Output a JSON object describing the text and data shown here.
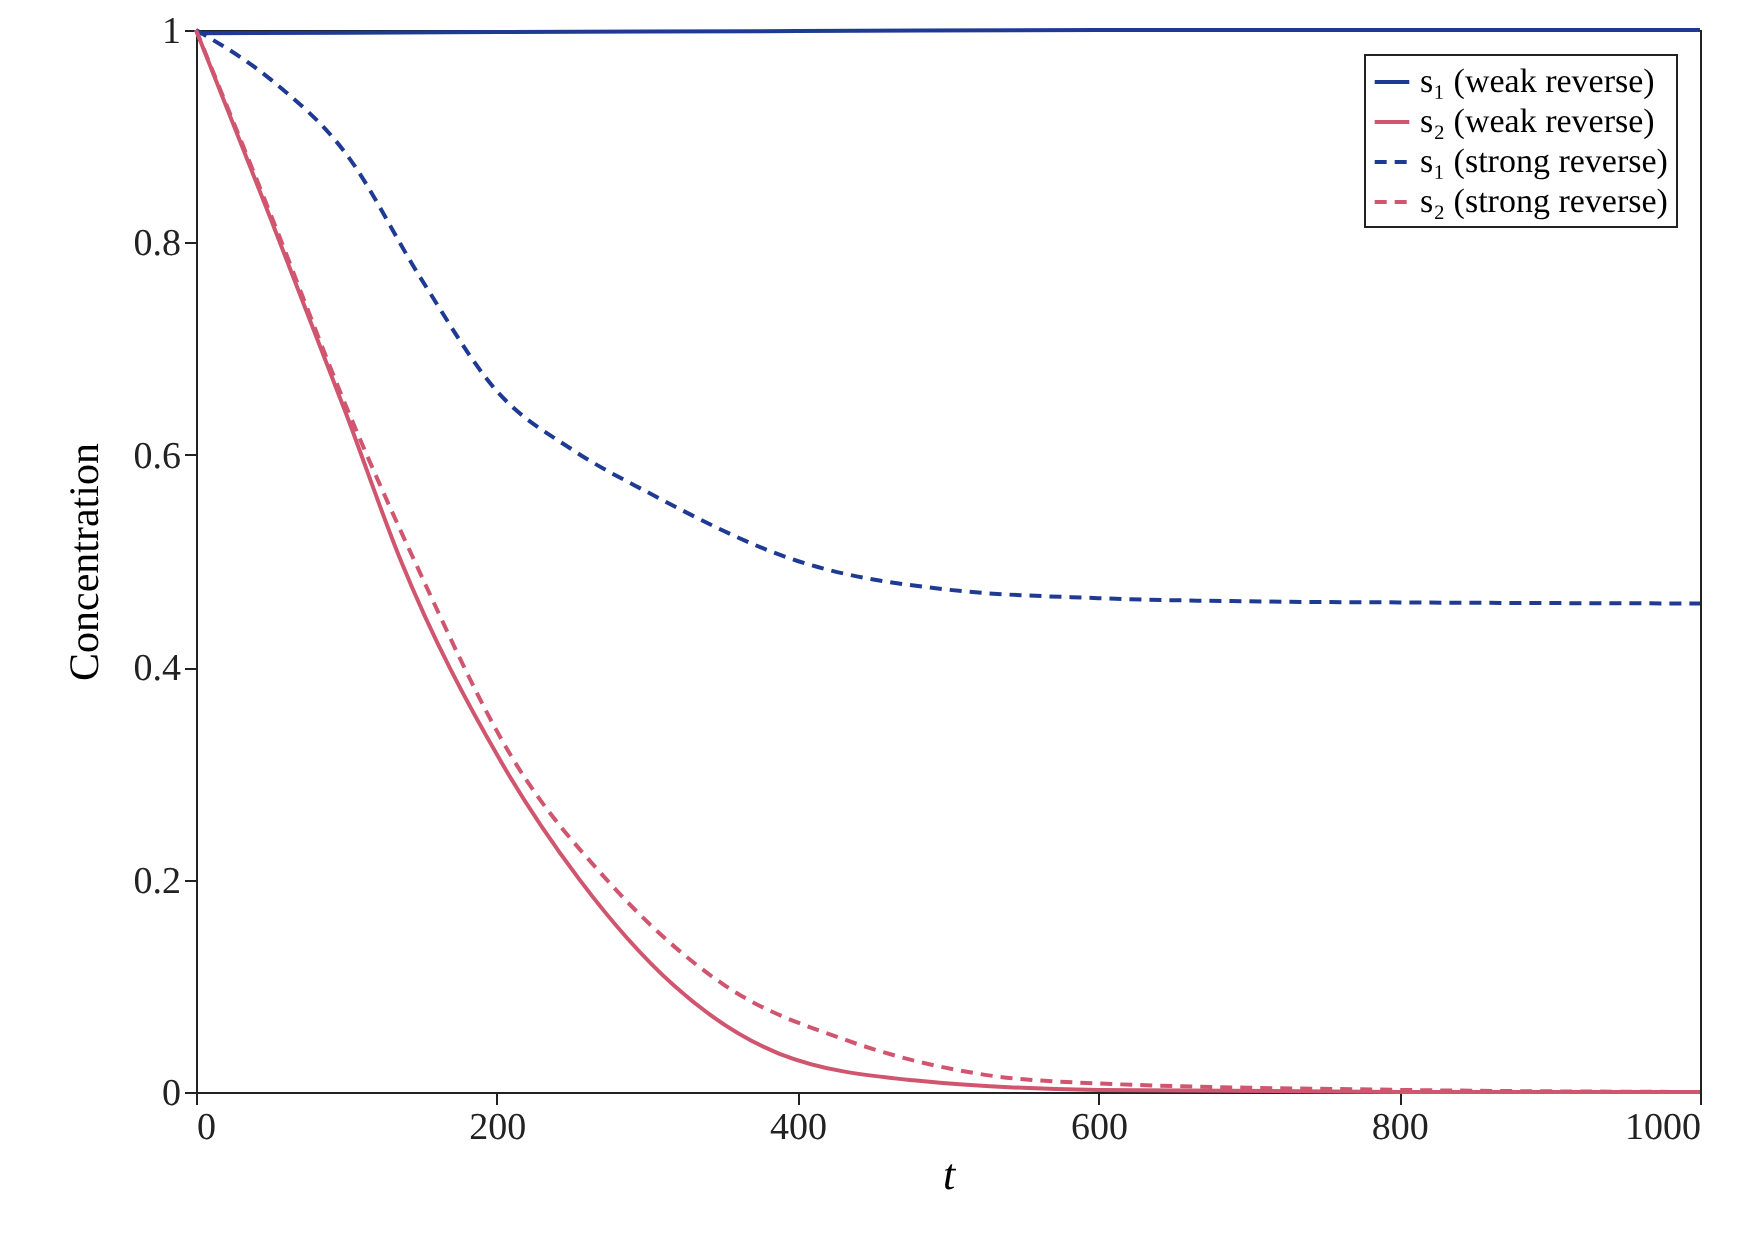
{
  "chart_data": {
    "type": "line",
    "xlabel": "t",
    "ylabel": "Concentration",
    "xlim": [
      0,
      1000
    ],
    "ylim": [
      0,
      1
    ],
    "xticks": [
      0,
      200,
      400,
      600,
      800,
      1000
    ],
    "yticks": [
      0,
      0.2,
      0.4,
      0.6,
      0.8,
      1
    ],
    "grid": false,
    "legend": "top right",
    "marker": "none",
    "series": [
      {
        "name": "s₁ (weak reverse)",
        "color": "#1f3a93",
        "line_style": "solid",
        "x": [
          0,
          200,
          400,
          600,
          1000
        ],
        "values": [
          0.997,
          0.998,
          0.999,
          1,
          1
        ]
      },
      {
        "name": "s₂ (weak reverse)",
        "color": "#d0566f",
        "line_style": "solid",
        "x": [
          0,
          50,
          100,
          136,
          202,
          255,
          318,
          388,
          477,
          600,
          800,
          1000
        ],
        "values": [
          1,
          0.821,
          0.638,
          0.501,
          0.313,
          0.2,
          0.1,
          0.036,
          0.011,
          0.002,
          0,
          0
        ]
      },
      {
        "name": "s₁ (strong reverse)",
        "color": "#1f3a93",
        "line_style": "dashed",
        "x": [
          0,
          50,
          100,
          150,
          200,
          250,
          300,
          400,
          500,
          600,
          700,
          800,
          1000
        ],
        "values": [
          1,
          0.953,
          0.883,
          0.765,
          0.66,
          0.605,
          0.565,
          0.5,
          0.473,
          0.465,
          0.462,
          0.461,
          0.46
        ]
      },
      {
        "name": "s₂ (strong reverse)",
        "color": "#d0566f",
        "line_style": "dashed",
        "x": [
          0,
          50,
          100,
          145,
          211,
          273,
          352,
          432,
          521,
          600,
          800,
          1000
        ],
        "values": [
          1,
          0.825,
          0.645,
          0.501,
          0.313,
          0.2,
          0.1,
          0.049,
          0.017,
          0.008,
          0.002,
          0
        ]
      }
    ]
  }
}
